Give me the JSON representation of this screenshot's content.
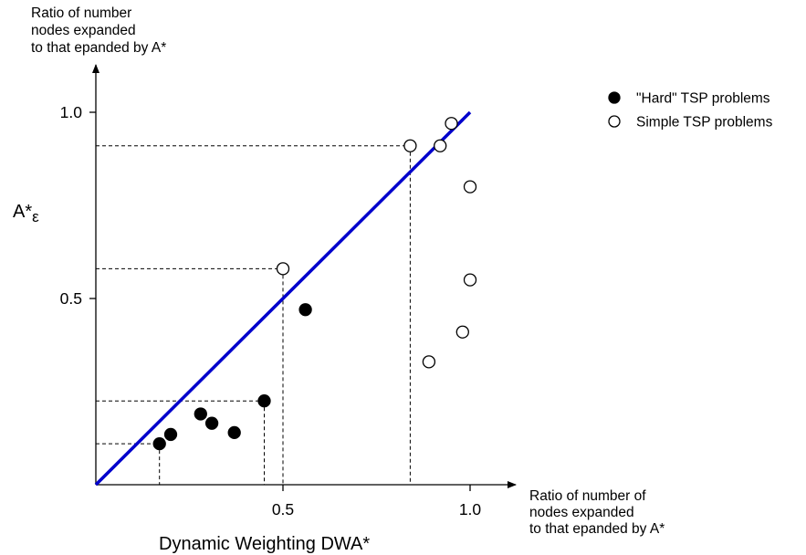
{
  "chart_data": {
    "type": "scatter",
    "title": "",
    "y_axis_label_lines": [
      "Ratio of number",
      "nodes expanded",
      "to that epanded by A*"
    ],
    "x_axis_label_lines": [
      "Ratio of number of",
      "nodes expanded",
      "to that epanded by A*"
    ],
    "left_label": "A*",
    "left_label_subscript": "ε",
    "bottom_label": "Dynamic Weighting DWA*",
    "xlim": [
      0,
      1.0
    ],
    "ylim": [
      0,
      1.0
    ],
    "x_ticks": [
      {
        "value": 0.5,
        "label": "0.5"
      },
      {
        "value": 1.0,
        "label": "1.0"
      }
    ],
    "y_ticks": [
      {
        "value": 0.5,
        "label": "0.5"
      },
      {
        "value": 1.0,
        "label": "1.0"
      }
    ],
    "reference_line": {
      "from": [
        0,
        0
      ],
      "to": [
        1.0,
        1.0
      ],
      "color": "#0000cc"
    },
    "grid": false,
    "legend_position": "top-right",
    "series": [
      {
        "name": "\"Hard\" TSP problems",
        "marker": "filled",
        "points": [
          {
            "x": 0.17,
            "y": 0.11
          },
          {
            "x": 0.2,
            "y": 0.135
          },
          {
            "x": 0.28,
            "y": 0.19
          },
          {
            "x": 0.31,
            "y": 0.165
          },
          {
            "x": 0.37,
            "y": 0.14
          },
          {
            "x": 0.45,
            "y": 0.225
          },
          {
            "x": 0.56,
            "y": 0.47
          }
        ]
      },
      {
        "name": "Simple TSP problems",
        "marker": "hollow",
        "points": [
          {
            "x": 0.5,
            "y": 0.58
          },
          {
            "x": 0.84,
            "y": 0.91
          },
          {
            "x": 0.92,
            "y": 0.91
          },
          {
            "x": 0.95,
            "y": 0.97
          },
          {
            "x": 1.0,
            "y": 0.8
          },
          {
            "x": 1.0,
            "y": 0.55
          },
          {
            "x": 0.98,
            "y": 0.41
          },
          {
            "x": 0.89,
            "y": 0.33
          }
        ]
      }
    ],
    "dashed_guides": [
      {
        "x": 0.17,
        "y": 0.11
      },
      {
        "x": 0.45,
        "y": 0.225
      },
      {
        "x": 0.5,
        "y": 0.58
      },
      {
        "x": 0.84,
        "y": 0.91
      }
    ]
  }
}
